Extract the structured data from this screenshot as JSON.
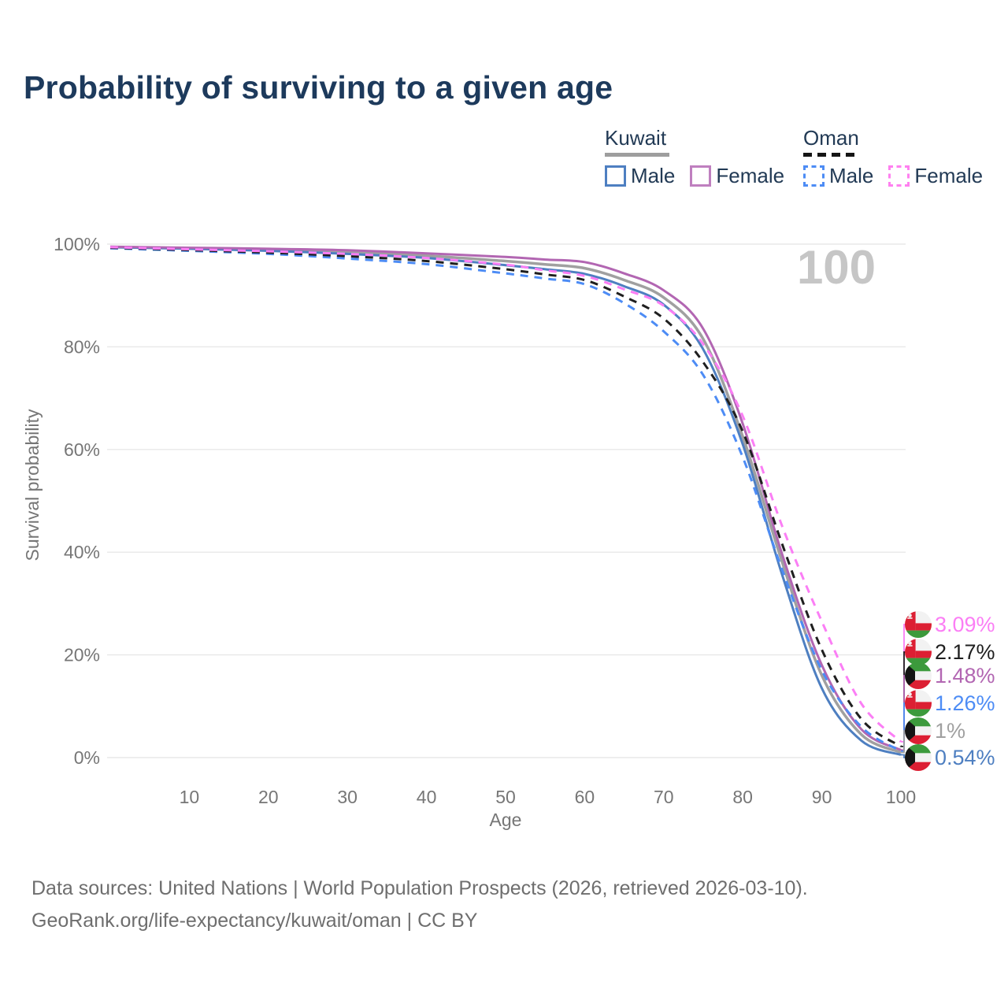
{
  "title": "Probability of surviving to a given age",
  "legend": {
    "kuwait": {
      "label": "Kuwait",
      "male_label": "Male",
      "female_label": "Female"
    },
    "oman": {
      "label": "Oman",
      "male_label": "Male",
      "female_label": "Female"
    }
  },
  "hover": {
    "age_label": "100"
  },
  "axes": {
    "y_label": "Survival probability",
    "x_label": "Age",
    "y_ticks": [
      "0%",
      "20%",
      "40%",
      "60%",
      "80%",
      "100%"
    ],
    "x_ticks": [
      "10",
      "20",
      "30",
      "40",
      "50",
      "60",
      "70",
      "80",
      "90",
      "100"
    ]
  },
  "footer": {
    "line1": "Data sources: United Nations | World Population Prospects (2026, retrieved 2026-03-10).",
    "line2": "GeoRank.org/life-expectancy/kuwait/oman | CC BY"
  },
  "colors": {
    "title_text": "#1d3a5c",
    "legend_text": "#223a55",
    "axis_text": "#767676",
    "gridline": "#e8e8e8",
    "hover_age_text": "#c6c6c6",
    "kuwait_male": "#4e7fc1",
    "kuwait_female": "#b266b2",
    "kuwait_all": "#a0a0a0",
    "oman_male": "#4d8cf5",
    "oman_female": "#fb7ef5",
    "oman_all": "#1f1f1f"
  },
  "chart_data": {
    "type": "line",
    "title": "Probability of surviving to a given age",
    "xlabel": "Age",
    "ylabel": "Survival probability",
    "xlim": [
      0,
      100
    ],
    "ylim": [
      0,
      100
    ],
    "grid": "horizontal",
    "legend_position": "top-right",
    "hover_age": 100,
    "x": [
      0,
      10,
      20,
      30,
      40,
      50,
      55,
      60,
      65,
      70,
      75,
      80,
      85,
      90,
      95,
      100
    ],
    "series": [
      {
        "id": "kuwait-all",
        "name": "Kuwait",
        "country": "Kuwait",
        "sex": "All",
        "color": "#a0a0a0",
        "dashed": false,
        "width": 3.5,
        "flag": "kuwait",
        "end_label": "1%",
        "end_value": 1.0,
        "values": [
          99.45,
          99.2,
          98.9,
          98.45,
          97.75,
          96.7,
          96.05,
          95.3,
          93.0,
          89.6,
          81.5,
          62.5,
          38.0,
          16.0,
          4.5,
          1.0
        ]
      },
      {
        "id": "kuwait-male",
        "name": "Kuwait Male",
        "country": "Kuwait",
        "sex": "Male",
        "color": "#4e7fc1",
        "dashed": false,
        "width": 3,
        "flag": "kuwait",
        "end_label": "0.54%",
        "end_value": 0.54,
        "values": [
          99.4,
          99.1,
          98.7,
          98.1,
          97.3,
          95.9,
          95.1,
          94.2,
          91.8,
          88.2,
          79.5,
          61.0,
          35.5,
          13.5,
          3.3,
          0.54
        ]
      },
      {
        "id": "kuwait-female",
        "name": "Kuwait Female",
        "country": "Kuwait",
        "sex": "Female",
        "color": "#b266b2",
        "dashed": false,
        "width": 3,
        "flag": "kuwait",
        "end_label": "1.48%",
        "end_value": 1.48,
        "values": [
          99.5,
          99.3,
          99.1,
          98.8,
          98.2,
          97.5,
          97.0,
          96.5,
          94.3,
          91.0,
          83.5,
          65.0,
          39.5,
          18.0,
          5.5,
          1.48
        ]
      },
      {
        "id": "oman-male",
        "name": "Oman Male",
        "country": "Oman",
        "sex": "Male",
        "color": "#4d8cf5",
        "dashed": true,
        "width": 3,
        "flag": "oman",
        "end_label": "1.26%",
        "end_value": 1.26,
        "values": [
          99.2,
          98.7,
          98.1,
          97.2,
          96.1,
          94.3,
          93.3,
          92.2,
          88.5,
          83.0,
          74.5,
          58.5,
          36.5,
          17.0,
          6.0,
          1.26
        ]
      },
      {
        "id": "oman-all",
        "name": "Oman",
        "country": "Oman",
        "sex": "All",
        "color": "#1f1f1f",
        "dashed": true,
        "width": 3,
        "flag": "oman",
        "end_label": "2.17%",
        "end_value": 2.17,
        "values": [
          99.3,
          98.85,
          98.35,
          97.65,
          96.7,
          95.1,
          94.1,
          93.0,
          89.8,
          85.5,
          77.0,
          63.5,
          41.5,
          21.0,
          7.5,
          2.17
        ]
      },
      {
        "id": "oman-female",
        "name": "Oman Female",
        "country": "Oman",
        "sex": "Female",
        "color": "#fb7ef5",
        "dashed": true,
        "width": 3,
        "flag": "oman",
        "end_label": "3.09%",
        "end_value": 3.09,
        "values": [
          99.4,
          99.0,
          98.6,
          98.1,
          97.3,
          96.0,
          94.9,
          93.8,
          91.2,
          88.0,
          80.5,
          66.5,
          45.0,
          26.5,
          10.5,
          3.09
        ]
      }
    ],
    "end_label_order": [
      "oman-female",
      "oman-all",
      "kuwait-female",
      "oman-male",
      "kuwait-all",
      "kuwait-male"
    ]
  }
}
